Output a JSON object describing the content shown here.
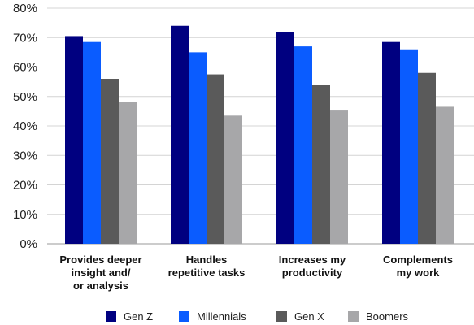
{
  "chart_data": {
    "type": "bar",
    "title": "",
    "xlabel": "",
    "ylabel": "",
    "ylim": [
      0,
      80
    ],
    "yticks": [
      0,
      10,
      20,
      30,
      40,
      50,
      60,
      70,
      80
    ],
    "ytick_format": "{v}%",
    "grid": true,
    "legend_position": "bottom",
    "categories": [
      [
        "Provides deeper",
        "insight and/",
        "or analysis"
      ],
      [
        "Handles",
        "repetitive tasks"
      ],
      [
        "Increases my",
        "productivity"
      ],
      [
        "Complements",
        "my work"
      ]
    ],
    "series": [
      {
        "name": "Gen Z",
        "color": "#000080",
        "values": [
          70.5,
          74,
          72,
          68.5
        ]
      },
      {
        "name": "Millennials",
        "color": "#0a5cff",
        "values": [
          68.5,
          65,
          67,
          66
        ]
      },
      {
        "name": "Gen X",
        "color": "#5a5a5a",
        "values": [
          56,
          57.5,
          54,
          58
        ]
      },
      {
        "name": "Boomers",
        "color": "#a7a7a9",
        "values": [
          48,
          43.5,
          45.5,
          46.5
        ]
      }
    ]
  }
}
